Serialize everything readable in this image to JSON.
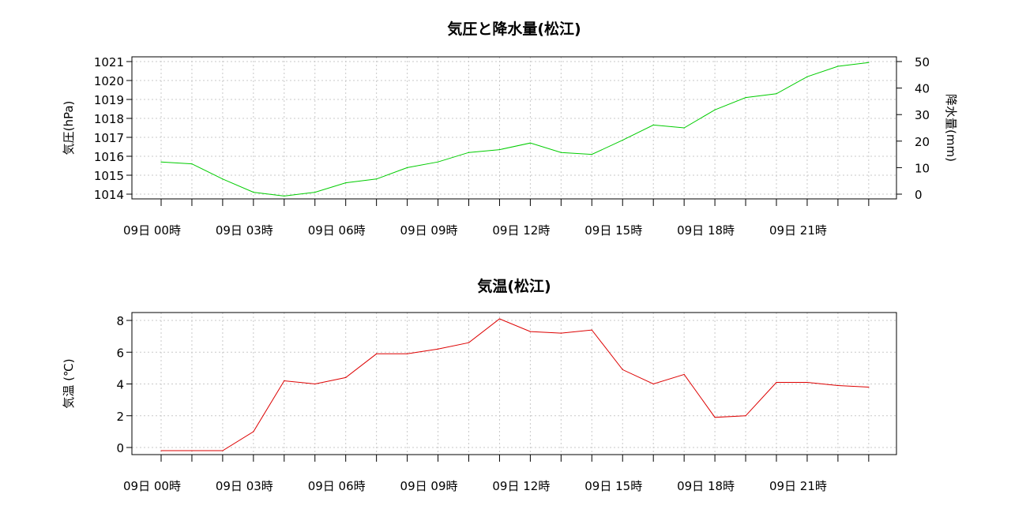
{
  "chart_data": [
    {
      "type": "line",
      "title": "気圧と降水量(松江)",
      "ylabel": "気圧(hPa)",
      "y2label": "降水量(mm)",
      "ylim": [
        1014,
        1021
      ],
      "y2lim": [
        0,
        50
      ],
      "yticks": [
        1014,
        1015,
        1016,
        1017,
        1018,
        1019,
        1020,
        1021
      ],
      "y2ticks": [
        0,
        10,
        20,
        30,
        40,
        50
      ],
      "xtick_labels": [
        "09日 00時",
        "09日 03時",
        "09日 06時",
        "09日 09時",
        "09日 12時",
        "09日 15時",
        "09日 18時",
        "09日 21時"
      ],
      "grid": true,
      "color": "#00cc00",
      "series": [
        {
          "hours": [
            0,
            1,
            2,
            3,
            4,
            5,
            6,
            7,
            8,
            9,
            10,
            11,
            12,
            13,
            14,
            15,
            16,
            17,
            18,
            19,
            20,
            21,
            22,
            23
          ],
          "values": [
            1015.7,
            1015.6,
            1014.8,
            1014.1,
            1013.9,
            1014.1,
            1014.6,
            1014.8,
            1015.4,
            1015.7,
            1016.2,
            1016.35,
            1016.7,
            1016.2,
            1016.1,
            1016.85,
            1017.65,
            1017.5,
            1018.45,
            1019.1,
            1019.3,
            1020.2,
            1020.75,
            1020.95
          ]
        }
      ]
    },
    {
      "type": "line",
      "title": "気温(松江)",
      "ylabel": "気温 (℃)",
      "ylim": [
        -0.5,
        8.5
      ],
      "yticks": [
        0,
        2,
        4,
        6,
        8
      ],
      "xtick_labels": [
        "09日 00時",
        "09日 03時",
        "09日 06時",
        "09日 09時",
        "09日 12時",
        "09日 15時",
        "09日 18時",
        "09日 21時"
      ],
      "grid": true,
      "color": "#dd0000",
      "series": [
        {
          "hours": [
            0,
            1,
            2,
            3,
            4,
            5,
            6,
            7,
            8,
            9,
            10,
            11,
            12,
            13,
            14,
            15,
            16,
            17,
            18,
            19,
            20,
            21,
            22,
            23
          ],
          "values": [
            -0.2,
            -0.2,
            -0.2,
            1.0,
            4.2,
            4.0,
            4.4,
            5.9,
            5.9,
            6.2,
            6.6,
            8.1,
            7.3,
            7.2,
            7.4,
            4.9,
            4.0,
            4.6,
            1.9,
            2.0,
            4.1,
            4.1,
            3.9,
            3.8
          ]
        }
      ]
    }
  ]
}
